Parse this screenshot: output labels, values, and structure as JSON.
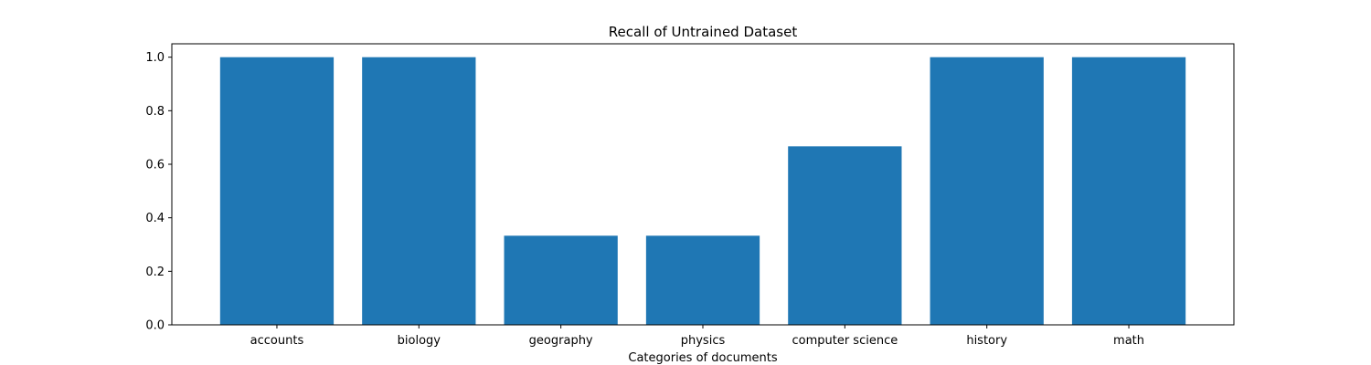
{
  "chart_data": {
    "type": "bar",
    "title": "Recall of Untrained Dataset",
    "xlabel": "Categories of documents",
    "ylabel": "",
    "categories": [
      "accounts",
      "biology",
      "geography",
      "physics",
      "computer science",
      "history",
      "math"
    ],
    "values": [
      1.0,
      1.0,
      0.333,
      0.333,
      0.667,
      1.0,
      1.0
    ],
    "ylim": [
      0,
      1.05
    ],
    "yticks": [
      "0.0",
      "0.2",
      "0.4",
      "0.6",
      "0.8",
      "1.0"
    ],
    "grid": false,
    "bar_color": "#1f77b4"
  }
}
